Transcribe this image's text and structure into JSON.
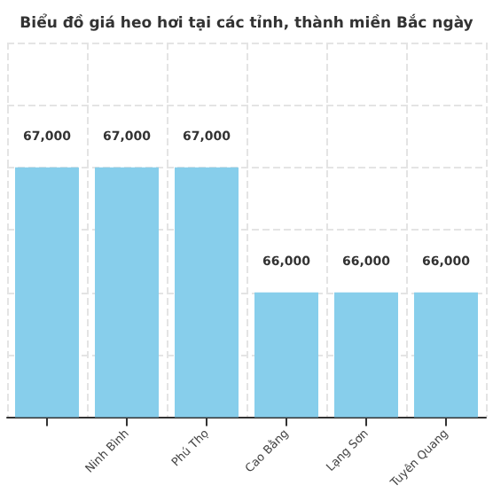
{
  "chart_data": {
    "type": "bar",
    "title": "Biểu đồ giá heo hơi tại các tỉnh, thành miền Bắc ngày",
    "categories": [
      null,
      "Ninh Bình",
      "Phú Thọ",
      "Cao Bằng",
      "Lạng Sơn",
      "Tuyên Quang"
    ],
    "values": [
      67000,
      67000,
      67000,
      66000,
      66000,
      66000
    ],
    "color": "#87ceeb",
    "value_labels": [
      "67,000",
      "67,000",
      "67,000",
      "66,000",
      "66,000",
      "66,000"
    ],
    "ylim": [
      65000,
      68000
    ],
    "tick_labels": "x",
    "grid": true
  }
}
